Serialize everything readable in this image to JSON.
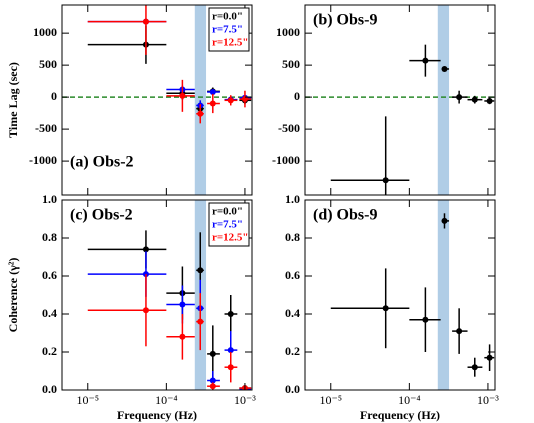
{
  "chart_data": [
    {
      "type": "scatter",
      "title": "(a) Obs-2",
      "title_loc": "lower left",
      "ylabel": "Time Lag (sec)",
      "xlog": true,
      "xlim": [
        4.7e-06,
        0.00123
      ],
      "xticks": [
        {
          "value": 1e-05,
          "label": "10⁻⁵"
        },
        {
          "value": 0.0001,
          "label": "10⁻⁴"
        },
        {
          "value": 0.001,
          "label": "10⁻³"
        }
      ],
      "xtick_labels": false,
      "ylim": [
        -1530,
        1440
      ],
      "yticks": [
        -1000,
        -500,
        0,
        500,
        1000
      ],
      "band": [
        0.00023,
        0.00032
      ],
      "band_color": "#b0cde6",
      "hline": {
        "value": 0,
        "color": "#2a8a2a"
      },
      "legend": "upper right",
      "series": [
        {
          "name": "r=0.0\"",
          "color": "#000000",
          "x": [
            5.5e-05,
            0.00016,
            0.00027,
            0.00039,
            0.00066,
            0.001
          ],
          "values": [
            820,
            60,
            -180,
            90,
            -40,
            -50
          ],
          "y_err": [
            300,
            100,
            120,
            60,
            50,
            60
          ],
          "x_low": [
            1e-05,
            0.0001,
            0.00024,
            0.00033,
            0.00055,
            0.00085
          ],
          "x_high": [
            0.0001,
            0.00023,
            0.0003,
            0.00048,
            0.0008,
            0.0012
          ]
        },
        {
          "name": "r=7.5\"",
          "color": "#0000ff",
          "x": [
            5.5e-05,
            0.00016,
            0.00027,
            0.00039,
            0.00066,
            0.001
          ],
          "values": [
            1180,
            120,
            -130,
            80,
            -40,
            -10
          ],
          "y_err": [
            40,
            60,
            80,
            40,
            40,
            40
          ],
          "x_low": [
            1e-05,
            0.0001,
            0.00024,
            0.00033,
            0.00055,
            0.00085
          ],
          "x_high": [
            0.0001,
            0.00023,
            0.0003,
            0.00048,
            0.0008,
            0.0012
          ]
        },
        {
          "name": "r=12.5\"",
          "color": "#ff0000",
          "x": [
            5.5e-05,
            0.00016,
            0.00027,
            0.00039,
            0.00066,
            0.001
          ],
          "values": [
            1180,
            20,
            -260,
            -100,
            -50,
            -30
          ],
          "y_err": [
            520,
            250,
            150,
            150,
            80,
            130
          ],
          "x_low": [
            1e-05,
            0.0001,
            0.00024,
            0.00033,
            0.00055,
            0.00085
          ],
          "x_high": [
            0.0001,
            0.00023,
            0.0003,
            0.00048,
            0.0008,
            0.0012
          ]
        }
      ]
    },
    {
      "type": "scatter",
      "title": "(b) Obs-9",
      "title_loc": "upper left",
      "xlog": true,
      "xlim": [
        4.7e-06,
        0.00123
      ],
      "xticks": [
        {
          "value": 1e-05,
          "label": "10⁻⁵"
        },
        {
          "value": 0.0001,
          "label": "10⁻⁴"
        },
        {
          "value": 0.001,
          "label": "10⁻³"
        }
      ],
      "xtick_labels": false,
      "ylim": [
        -1530,
        1440
      ],
      "yticks": [
        -1000,
        -500,
        0,
        500,
        1000
      ],
      "band": [
        0.00023,
        0.00032
      ],
      "band_color": "#b0cde6",
      "hline": {
        "value": 0,
        "color": "#2a8a2a"
      },
      "series": [
        {
          "color": "#000000",
          "x": [
            5e-05,
            0.00016,
            0.00028,
            0.00043,
            0.00068,
            0.00105
          ],
          "values": [
            -1300,
            570,
            440,
            0,
            -40,
            -60
          ],
          "y_err": [
            1000,
            250,
            30,
            100,
            60,
            50
          ],
          "x_low": [
            1e-05,
            0.0001,
            0.00026,
            0.00035,
            0.00055,
            0.0009
          ],
          "x_high": [
            0.0001,
            0.00025,
            0.00032,
            0.00055,
            0.00085,
            0.0012
          ]
        }
      ]
    },
    {
      "type": "scatter",
      "title": "(c) Obs-2",
      "title_loc": "upper left",
      "xlabel": "Frequency (Hz)",
      "ylabel": "Coherence (γ²)",
      "xlog": true,
      "xlim": [
        4.7e-06,
        0.00123
      ],
      "xticks": [
        {
          "value": 1e-05,
          "label": "10⁻⁵"
        },
        {
          "value": 0.0001,
          "label": "10⁻⁴"
        },
        {
          "value": 0.001,
          "label": "10⁻³"
        }
      ],
      "ylim": [
        0,
        1
      ],
      "yticks": [
        {
          "value": 0,
          "label": "0.0"
        },
        {
          "value": 0.2,
          "label": "0.2"
        },
        {
          "value": 0.4,
          "label": "0.4"
        },
        {
          "value": 0.6,
          "label": "0.6"
        },
        {
          "value": 0.8,
          "label": "0.8"
        },
        {
          "value": 1,
          "label": "1.0"
        }
      ],
      "band": [
        0.00023,
        0.00032
      ],
      "band_color": "#b0cde6",
      "legend": "upper right",
      "series": [
        {
          "name": "r=0.0\"",
          "color": "#000000",
          "x": [
            5.5e-05,
            0.00016,
            0.00027,
            0.00039,
            0.00066,
            0.001
          ],
          "values": [
            0.74,
            0.51,
            0.63,
            0.19,
            0.4,
            0.01
          ],
          "y_err": [
            0.1,
            0.14,
            0.2,
            0.15,
            0.1,
            0.01
          ],
          "x_low": [
            1e-05,
            0.0001,
            0.00024,
            0.00033,
            0.00055,
            0.00085
          ],
          "x_high": [
            0.0001,
            0.00023,
            0.0003,
            0.00048,
            0.0008,
            0.0012
          ]
        },
        {
          "name": "r=7.5\"",
          "color": "#0000ff",
          "x": [
            5.5e-05,
            0.00016,
            0.00027,
            0.00039,
            0.00066,
            0.001
          ],
          "values": [
            0.61,
            0.45,
            0.43,
            0.05,
            0.21,
            0.005
          ],
          "y_err": [
            0.12,
            0.1,
            0.15,
            0.05,
            0.1,
            0.005
          ],
          "x_low": [
            1e-05,
            0.0001,
            0.00024,
            0.00033,
            0.00055,
            0.00085
          ],
          "x_high": [
            0.0001,
            0.00023,
            0.0003,
            0.00048,
            0.0008,
            0.0012
          ]
        },
        {
          "name": "r=12.5\"",
          "color": "#ff0000",
          "x": [
            5.5e-05,
            0.00016,
            0.00027,
            0.00039,
            0.00066,
            0.001
          ],
          "values": [
            0.42,
            0.28,
            0.36,
            0.02,
            0.12,
            0.01
          ],
          "y_err": [
            0.19,
            0.12,
            0.15,
            0.02,
            0.08,
            0.01
          ],
          "x_low": [
            1e-05,
            0.0001,
            0.00024,
            0.00033,
            0.00055,
            0.00085
          ],
          "x_high": [
            0.0001,
            0.00023,
            0.0003,
            0.00048,
            0.0008,
            0.0012
          ]
        }
      ]
    },
    {
      "type": "scatter",
      "title": "(d) Obs-9",
      "title_loc": "upper left",
      "xlabel": "Frequency (Hz)",
      "xlog": true,
      "xlim": [
        4.7e-06,
        0.00123
      ],
      "xticks": [
        {
          "value": 1e-05,
          "label": "10⁻⁵"
        },
        {
          "value": 0.0001,
          "label": "10⁻⁴"
        },
        {
          "value": 0.001,
          "label": "10⁻³"
        }
      ],
      "ylim": [
        0,
        1
      ],
      "yticks": [
        {
          "value": 0,
          "label": "0.0"
        },
        {
          "value": 0.2,
          "label": "0.2"
        },
        {
          "value": 0.4,
          "label": "0.4"
        },
        {
          "value": 0.6,
          "label": "0.6"
        },
        {
          "value": 0.8,
          "label": "0.8"
        },
        {
          "value": 1,
          "label": "1.0"
        }
      ],
      "band": [
        0.00023,
        0.00032
      ],
      "band_color": "#b0cde6",
      "series": [
        {
          "color": "#000000",
          "x": [
            5e-05,
            0.00016,
            0.00028,
            0.00043,
            0.00068,
            0.00105
          ],
          "values": [
            0.43,
            0.37,
            0.89,
            0.31,
            0.12,
            0.17
          ],
          "y_err": [
            0.21,
            0.17,
            0.04,
            0.12,
            0.05,
            0.07
          ],
          "x_low": [
            1e-05,
            0.0001,
            0.00026,
            0.00035,
            0.00055,
            0.0009
          ],
          "x_high": [
            0.0001,
            0.00025,
            0.00032,
            0.00055,
            0.00085,
            0.0012
          ]
        }
      ]
    }
  ]
}
